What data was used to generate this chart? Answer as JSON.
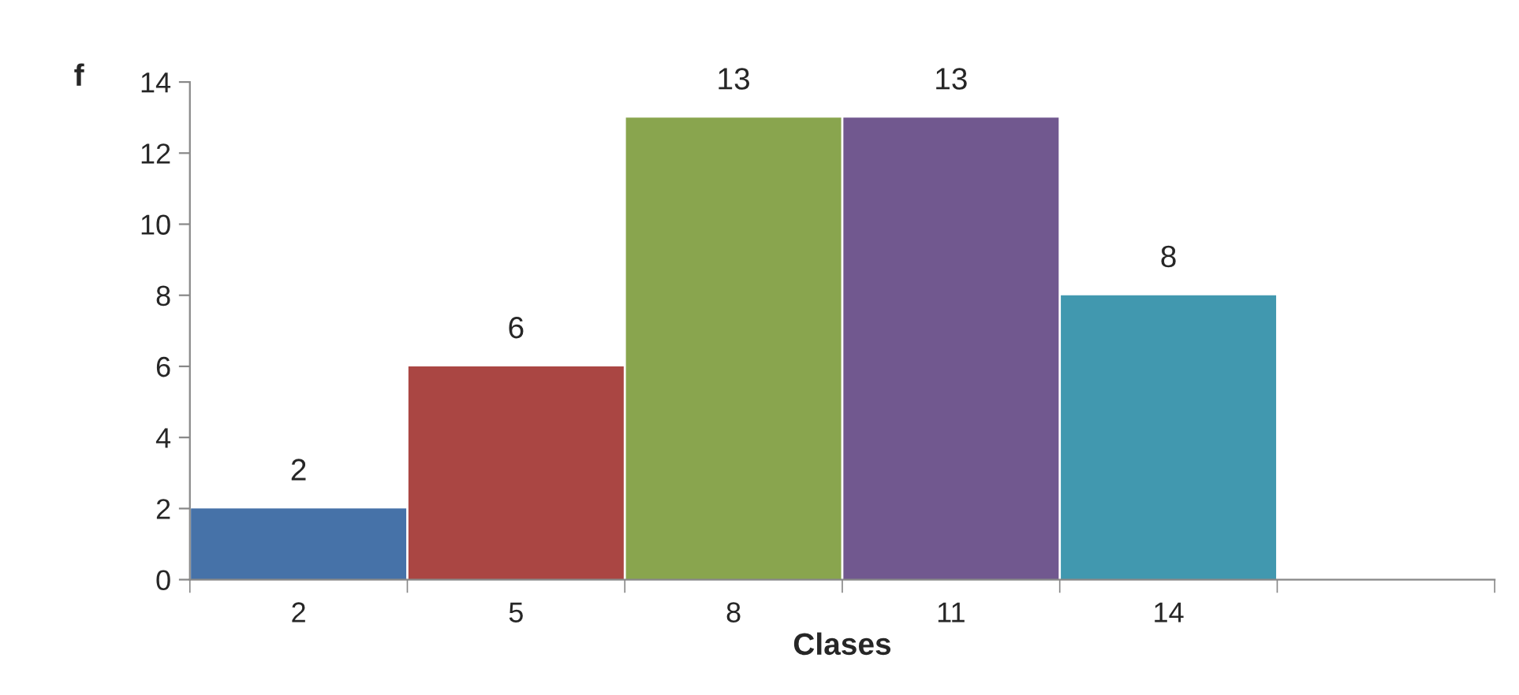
{
  "chart_data": {
    "type": "bar",
    "xlabel": "Clases",
    "ylabel": "f",
    "categories": [
      "2",
      "5",
      "8",
      "11",
      "14",
      null
    ],
    "values": [
      2,
      6,
      13,
      13,
      8,
      null
    ],
    "colors": [
      "#4672a8",
      "#aa4643",
      "#89a54e",
      "#71588f",
      "#4198af",
      "#4198af"
    ],
    "ylim": [
      0,
      14
    ],
    "yticks": [
      0,
      2,
      4,
      6,
      8,
      10,
      12,
      14
    ],
    "data_labels": true,
    "grid": false,
    "legend": false
  }
}
